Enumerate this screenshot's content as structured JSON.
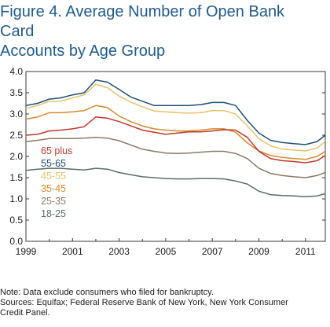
{
  "figure": {
    "title_line1": "Figure 4. Average Number of Open Bank Card",
    "title_line2": "Accounts by Age Group",
    "note": "Note: Data exclude consumers who filed for bankruptcy.",
    "sources_line1": "Sources: Equifax; Federal Reserve Bank of New York, New York Consumer",
    "sources_line2": "Credit Panel."
  },
  "chart_data": {
    "type": "line",
    "title": "",
    "xlabel": "",
    "ylabel": "",
    "xlim": [
      1999,
      2011.85
    ],
    "ylim": [
      0,
      4.0
    ],
    "yticks": [
      0.0,
      0.5,
      1.0,
      1.5,
      2.0,
      2.5,
      3.0,
      3.5,
      4.0
    ],
    "ytick_labels": [
      "0.0",
      "0.5",
      "1.0",
      "1.5",
      "2.0",
      "2.5",
      "3.0",
      "3.5",
      "4.0"
    ],
    "xticks": [
      1999,
      2001,
      2003,
      2005,
      2007,
      2009,
      2011
    ],
    "xtick_labels": [
      "1999",
      "2001",
      "2003",
      "2005",
      "2007",
      "2009",
      "2011"
    ],
    "grid": false,
    "legend_position": "bottom-left inside plot",
    "x": [
      1999,
      1999.5,
      2000,
      2000.5,
      2001,
      2001.5,
      2002,
      2002.5,
      2003,
      2003.5,
      2004,
      2004.5,
      2005,
      2005.5,
      2006,
      2006.5,
      2007,
      2007.5,
      2008,
      2008.5,
      2009,
      2009.5,
      2010,
      2010.5,
      2011,
      2011.5,
      2011.85
    ],
    "series": [
      {
        "name": "55-65",
        "color": "#1f4e79",
        "values": [
          3.2,
          3.25,
          3.35,
          3.38,
          3.45,
          3.5,
          3.8,
          3.75,
          3.58,
          3.4,
          3.3,
          3.2,
          3.2,
          3.2,
          3.2,
          3.22,
          3.27,
          3.27,
          3.2,
          2.85,
          2.55,
          2.38,
          2.33,
          2.3,
          2.28,
          2.35,
          2.5
        ]
      },
      {
        "name": "45-55",
        "color": "#e6c36a",
        "values": [
          3.13,
          3.2,
          3.3,
          3.3,
          3.38,
          3.45,
          3.7,
          3.62,
          3.42,
          3.28,
          3.17,
          3.07,
          3.05,
          3.03,
          3.02,
          3.03,
          3.08,
          3.08,
          3.0,
          2.72,
          2.42,
          2.25,
          2.17,
          2.15,
          2.13,
          2.2,
          2.35
        ]
      },
      {
        "name": "35-45",
        "color": "#d78a2b",
        "values": [
          2.88,
          2.93,
          3.03,
          3.03,
          3.05,
          3.08,
          3.2,
          3.15,
          2.95,
          2.82,
          2.72,
          2.65,
          2.62,
          2.6,
          2.6,
          2.62,
          2.65,
          2.65,
          2.57,
          2.32,
          2.13,
          2.02,
          1.98,
          1.95,
          1.93,
          2.0,
          2.12
        ]
      },
      {
        "name": "65 plus",
        "color": "#c0392b",
        "values": [
          2.5,
          2.52,
          2.6,
          2.62,
          2.65,
          2.7,
          2.93,
          2.9,
          2.82,
          2.72,
          2.62,
          2.57,
          2.52,
          2.55,
          2.58,
          2.58,
          2.6,
          2.63,
          2.62,
          2.45,
          2.12,
          1.95,
          1.9,
          1.88,
          1.85,
          1.9,
          2.02
        ]
      },
      {
        "name": "25-35",
        "color": "#8b7a66",
        "values": [
          2.35,
          2.38,
          2.42,
          2.42,
          2.42,
          2.43,
          2.45,
          2.43,
          2.37,
          2.27,
          2.17,
          2.12,
          2.08,
          2.07,
          2.08,
          2.1,
          2.12,
          2.12,
          2.07,
          1.95,
          1.72,
          1.6,
          1.55,
          1.52,
          1.5,
          1.55,
          1.62
        ]
      },
      {
        "name": "18-25",
        "color": "#5a6e66",
        "values": [
          1.67,
          1.7,
          1.72,
          1.72,
          1.7,
          1.68,
          1.72,
          1.7,
          1.62,
          1.57,
          1.52,
          1.5,
          1.48,
          1.47,
          1.47,
          1.48,
          1.48,
          1.47,
          1.42,
          1.35,
          1.18,
          1.1,
          1.08,
          1.07,
          1.05,
          1.07,
          1.12
        ]
      }
    ],
    "legend_order": [
      "65 plus",
      "55-65",
      "45-55",
      "35-45",
      "25-35",
      "18-25"
    ]
  }
}
